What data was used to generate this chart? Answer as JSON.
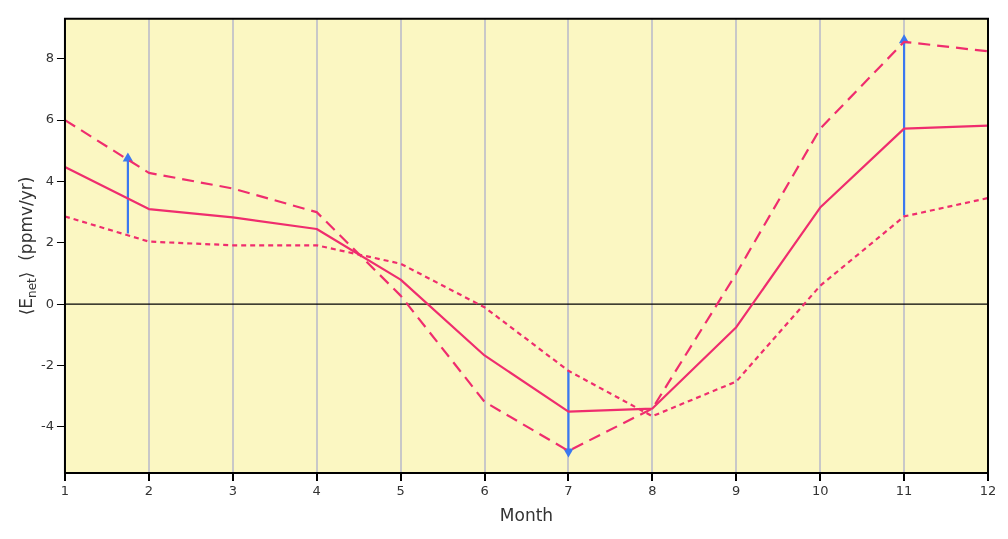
{
  "chart_data": {
    "type": "line",
    "xlabel": "Month",
    "ylabel": "⟨E$_{net}$⟩  (ppmv/yr)",
    "x": [
      1,
      2,
      3,
      4,
      5,
      6,
      7,
      8,
      9,
      10,
      11,
      12
    ],
    "series": [
      {
        "color": "#ef2d6e",
        "line_style": "solid",
        "values": [
          4.47,
          3.1,
          2.83,
          2.45,
          0.8,
          -1.67,
          -3.5,
          -3.4,
          -0.75,
          3.15,
          5.72,
          5.82
        ]
      },
      {
        "color": "#ef2d6e",
        "line_style": "dashed",
        "values": [
          6.0,
          4.28,
          3.77,
          3.0,
          0.28,
          -3.18,
          -4.78,
          -3.4,
          1.0,
          5.72,
          8.55,
          8.24
        ]
      },
      {
        "color": "#ef2d6e",
        "line_style": "dotted",
        "values": [
          2.86,
          2.04,
          1.92,
          1.92,
          1.32,
          -0.1,
          -2.17,
          -3.65,
          -2.52,
          0.6,
          2.86,
          3.46
        ]
      },
      {
        "color": "#3a78f0",
        "line_style": "solid",
        "marker": "triangle",
        "x": [
          1.75,
          1.75
        ],
        "values": [
          2.3,
          4.75
        ]
      },
      {
        "color": "#3a78f0",
        "line_style": "solid",
        "marker": "triangle",
        "x": [
          7,
          7
        ],
        "values": [
          -2.2,
          -4.8
        ]
      },
      {
        "color": "#3a78f0",
        "line_style": "solid",
        "marker": "triangle",
        "x": [
          11,
          11
        ],
        "values": [
          2.9,
          8.6
        ]
      }
    ],
    "xlim": [
      1,
      12
    ],
    "xticks": [
      1,
      2,
      3,
      4,
      5,
      6,
      7,
      8,
      9,
      10,
      11,
      12
    ],
    "ylim": [
      -5.5,
      9.3
    ],
    "yticks": [
      -4,
      -2,
      0,
      2,
      4,
      6,
      8
    ],
    "grid": "x",
    "legend": false,
    "ref_lines": [
      {
        "axis": "y",
        "value": 0,
        "color": "#000000"
      }
    ]
  }
}
